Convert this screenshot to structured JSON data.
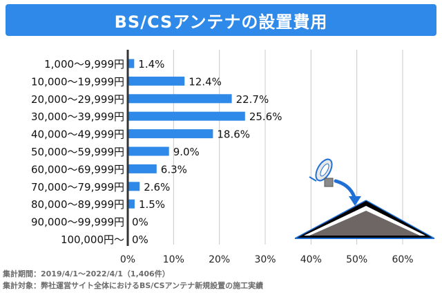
{
  "header": {
    "title": "BS/CSアンテナの設置費用"
  },
  "colors": {
    "accent": "#2e89e8",
    "bar": "#2e89e8",
    "grid": "#c8c8c8",
    "axis": "#333333"
  },
  "chart_data": {
    "type": "bar",
    "orientation": "horizontal",
    "title": "BS/CSアンテナの設置費用",
    "categories": [
      "1,000〜9,999円",
      "10,000〜19,999円",
      "20,000〜29,999円",
      "30,000〜39,999円",
      "40,000〜49,999円",
      "50,000〜59,999円",
      "60,000〜69,999円",
      "70,000〜79,999円",
      "80,000〜89,999円",
      "90,000〜99,999円",
      "100,000円〜"
    ],
    "values": [
      1.4,
      12.4,
      22.7,
      25.6,
      18.6,
      9.0,
      6.3,
      2.6,
      1.5,
      0,
      0
    ],
    "value_labels": [
      "1.4%",
      "12.4%",
      "22.7%",
      "25.6%",
      "18.6%",
      "9.0%",
      "6.3%",
      "2.6%",
      "1.5%",
      "0%",
      "0%"
    ],
    "xlim": [
      0,
      60
    ],
    "x_ticks": [
      0,
      10,
      20,
      30,
      40,
      50,
      60
    ],
    "x_tick_labels": [
      "0%",
      "10%",
      "20%",
      "30%",
      "40%",
      "50%",
      "60%"
    ],
    "grid": true
  },
  "illustration": {
    "icon": "satellite-dish-on-roof-icon"
  },
  "footer": {
    "period": "集計期間：2019/4/1〜2022/4/1（1,406件）",
    "scope": "集計対象：弊社運営サイト全体におけるBS/CSアンテナ新規設置の施工実績"
  }
}
